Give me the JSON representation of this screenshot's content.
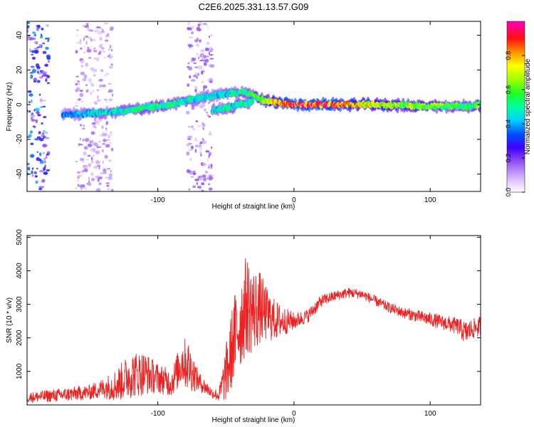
{
  "title": "C2E6.2025.331.13.57.G09",
  "colors": {
    "snr_line": "#ee2020",
    "axis": "#000000",
    "background": "#ffffff"
  },
  "chart_data": [
    {
      "id": "spectrogram",
      "type": "heatmap",
      "xlabel": "Height of straight line (km)",
      "ylabel": "Frequency (Hz)",
      "xlim": [
        -196,
        137
      ],
      "ylim": [
        -50,
        48
      ],
      "x_ticks": [
        -100,
        0,
        100
      ],
      "y_ticks": [
        -40,
        -20,
        0,
        20,
        40
      ],
      "x_tick_labels": [
        "-100",
        "0",
        "100"
      ],
      "y_tick_labels": [
        "-40",
        "-20",
        "0",
        "20",
        "40"
      ],
      "colorbar": {
        "label": "Normalized spectral amplitude",
        "range": [
          0,
          1
        ],
        "ticks": [
          0.0,
          0.2,
          0.4,
          0.6,
          0.8
        ],
        "tick_labels": [
          "0.0",
          "0.2",
          "0.4",
          "0.6",
          "0.8"
        ],
        "stops": [
          {
            "v": 0.0,
            "color": "#ffffff"
          },
          {
            "v": 0.08,
            "color": "#d8b8ff"
          },
          {
            "v": 0.18,
            "color": "#9050f0"
          },
          {
            "v": 0.26,
            "color": "#4000ff"
          },
          {
            "v": 0.34,
            "color": "#0050ff"
          },
          {
            "v": 0.42,
            "color": "#00d0ff"
          },
          {
            "v": 0.5,
            "color": "#00ffa0"
          },
          {
            "v": 0.58,
            "color": "#20ff20"
          },
          {
            "v": 0.66,
            "color": "#a0ff00"
          },
          {
            "v": 0.74,
            "color": "#ffff00"
          },
          {
            "v": 0.82,
            "color": "#ff9000"
          },
          {
            "v": 0.9,
            "color": "#ff1010"
          },
          {
            "v": 1.0,
            "color": "#ff00c0"
          }
        ]
      },
      "ridge": {
        "x": [
          -170,
          -150,
          -130,
          -110,
          -90,
          -75,
          -60,
          -45,
          -35,
          -28,
          -20,
          -10,
          0,
          20,
          60,
          100,
          130,
          137
        ],
        "y": [
          -6,
          -5,
          -4,
          -2,
          0,
          3,
          5,
          7,
          7,
          4,
          2,
          1,
          0,
          0,
          0,
          -1,
          -1,
          0
        ],
        "amplitude": [
          0.4,
          0.45,
          0.5,
          0.55,
          0.55,
          0.5,
          0.45,
          0.5,
          0.55,
          0.6,
          0.7,
          0.85,
          0.95,
          0.95,
          0.75,
          0.65,
          0.55,
          0.7
        ]
      },
      "ridge_secondary": {
        "x": [
          -60,
          -50,
          -40,
          -30
        ],
        "y": [
          -3,
          -2,
          0,
          2
        ],
        "amplitude": [
          0.45,
          0.5,
          0.5,
          0.55
        ]
      },
      "noise_bands": [
        {
          "x_range": [
            -196,
            -180
          ],
          "amplitude": 0.3
        },
        {
          "x_range": [
            -160,
            -133
          ],
          "amplitude": 0.12
        },
        {
          "x_range": [
            -78,
            -60
          ],
          "amplitude": 0.14
        }
      ]
    },
    {
      "id": "snr",
      "type": "line",
      "xlabel": "Height of straight line (km)",
      "ylabel": "SNR (10 * v/v)",
      "xlim": [
        -196,
        137
      ],
      "ylim": [
        0,
        5050
      ],
      "x_ticks": [
        -100,
        0,
        100
      ],
      "y_ticks": [
        1000,
        2000,
        3000,
        4000,
        5000
      ],
      "x_tick_labels": [
        "-100",
        "0",
        "100"
      ],
      "y_tick_labels": [
        "1000",
        "2000",
        "3000",
        "4000",
        "5000"
      ],
      "series": [
        {
          "name": "SNR",
          "x": [
            -196,
            -170,
            -150,
            -140,
            -130,
            -120,
            -110,
            -100,
            -90,
            -82,
            -78,
            -70,
            -60,
            -55,
            -48,
            -44,
            -40,
            -35,
            -30,
            -25,
            -20,
            -15,
            -10,
            0,
            10,
            20,
            30,
            40,
            50,
            60,
            70,
            80,
            90,
            100,
            110,
            120,
            126,
            130,
            137
          ],
          "y": [
            220,
            300,
            380,
            500,
            600,
            900,
            950,
            800,
            650,
            1300,
            1200,
            700,
            350,
            280,
            1200,
            2000,
            2400,
            3000,
            2800,
            2900,
            2700,
            2550,
            2500,
            2500,
            2650,
            3100,
            3250,
            3350,
            3300,
            3100,
            2900,
            2750,
            2650,
            2550,
            2450,
            2350,
            2150,
            2250,
            2350
          ],
          "jitter": [
            150,
            200,
            220,
            300,
            500,
            700,
            650,
            450,
            400,
            700,
            800,
            300,
            150,
            200,
            1100,
            1300,
            1400,
            1500,
            1300,
            1100,
            800,
            650,
            500,
            250,
            200,
            180,
            150,
            150,
            140,
            150,
            150,
            160,
            180,
            200,
            220,
            250,
            350,
            300,
            300
          ]
        }
      ]
    }
  ]
}
